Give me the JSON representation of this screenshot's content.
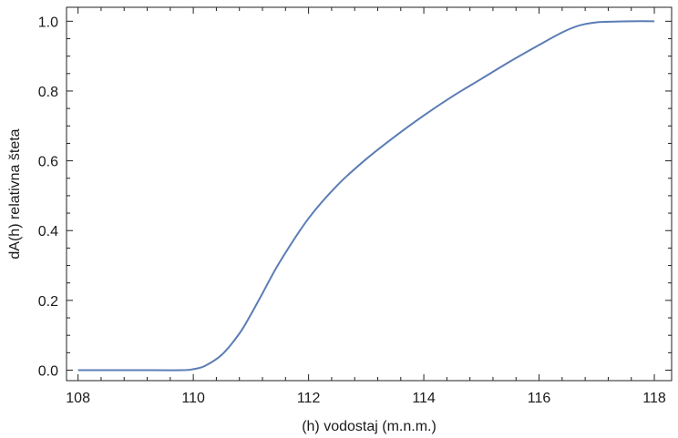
{
  "chart_data": {
    "type": "line",
    "title": "",
    "xlabel": "(h) vodostaj (m.n.m.)",
    "ylabel": "dA(h) relativna šteta",
    "xlim": [
      107.8,
      118.3
    ],
    "ylim": [
      -0.03,
      1.04
    ],
    "x_ticks": [
      108,
      110,
      112,
      114,
      116,
      118
    ],
    "x_tick_labels": [
      "108",
      "110",
      "112",
      "114",
      "116",
      "118"
    ],
    "y_ticks": [
      0.0,
      0.2,
      0.4,
      0.6,
      0.8,
      1.0
    ],
    "y_tick_labels": [
      "0.0",
      "0.2",
      "0.4",
      "0.6",
      "0.8",
      "1.0"
    ],
    "grid": false,
    "frame": true,
    "series": [
      {
        "color": "#5b7db5",
        "x": [
          108,
          109,
          109.8,
          110.0,
          110.2,
          110.5,
          110.8,
          111.0,
          111.2,
          111.5,
          112.0,
          112.5,
          113.0,
          113.5,
          114.0,
          114.5,
          115.0,
          115.5,
          116.0,
          116.4,
          116.7,
          117.0,
          117.3,
          117.6,
          118.0
        ],
        "y": [
          0.0,
          0.0,
          0.0,
          0.003,
          0.012,
          0.045,
          0.105,
          0.16,
          0.22,
          0.31,
          0.435,
          0.53,
          0.605,
          0.67,
          0.73,
          0.785,
          0.835,
          0.885,
          0.932,
          0.968,
          0.988,
          0.997,
          0.999,
          1.0,
          1.0
        ]
      }
    ]
  }
}
